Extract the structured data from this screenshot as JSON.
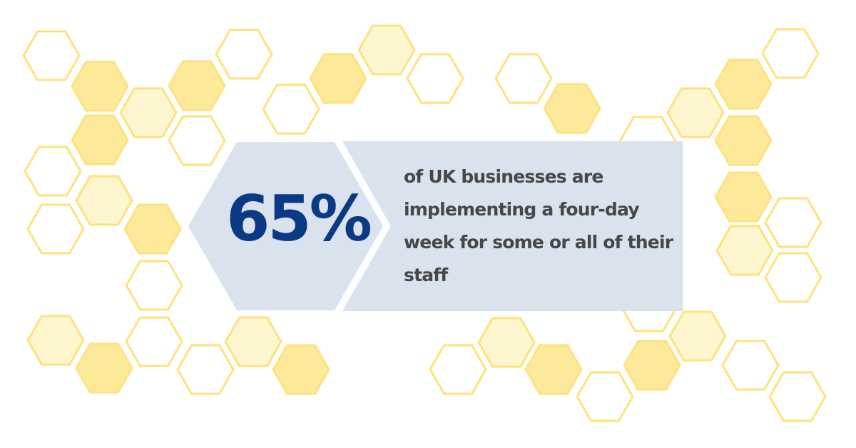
{
  "stat": {
    "value": "65%",
    "description": "of UK businesses are implementing a four-day week for some or all of their staff"
  },
  "colors": {
    "stat_text": "#0b3a84",
    "body_text": "#474747",
    "panel": "#dae2ed",
    "hex_stroke": "#fde27e",
    "hex_fill_strong": "#fde99a",
    "hex_fill_light": "#fef6cf"
  }
}
